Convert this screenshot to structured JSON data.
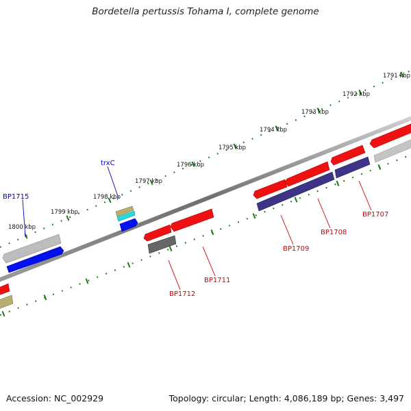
{
  "title": "Bordetella pertussis Tohama I, complete genome",
  "footer": {
    "accession": "Accession: NC_002929",
    "summary": "Topology: circular; Length: 4,086,189 bp; Genes: 3,497"
  },
  "ticks": [
    "1791 kbp",
    "1792 kbp",
    "1793 kbp",
    "1794 kbp",
    "1795 kbp",
    "1796 kbp",
    "1797 kbp",
    "1798 kbp",
    "1799 kbp",
    "1800 kbp"
  ],
  "gene_labels": {
    "forward": [
      "BP1715",
      "trxC"
    ],
    "reverse": [
      "BP1707",
      "BP1708",
      "BP1709",
      "BP1711",
      "BP1712"
    ]
  },
  "colors": {
    "backbone": "#7a7a7a",
    "tick": "#1a7a1a",
    "forward_label": "#0000bb",
    "reverse_label": "#cc0000",
    "red_gene": "#ee1111",
    "blue_gene": "#0000ee",
    "navy_gene": "#3d3487",
    "grey_gene": "#bbbbbb",
    "dark_grey_gene": "#666666",
    "olive_gene": "#b4aa6a",
    "cyan_gene": "#22dddd"
  }
}
